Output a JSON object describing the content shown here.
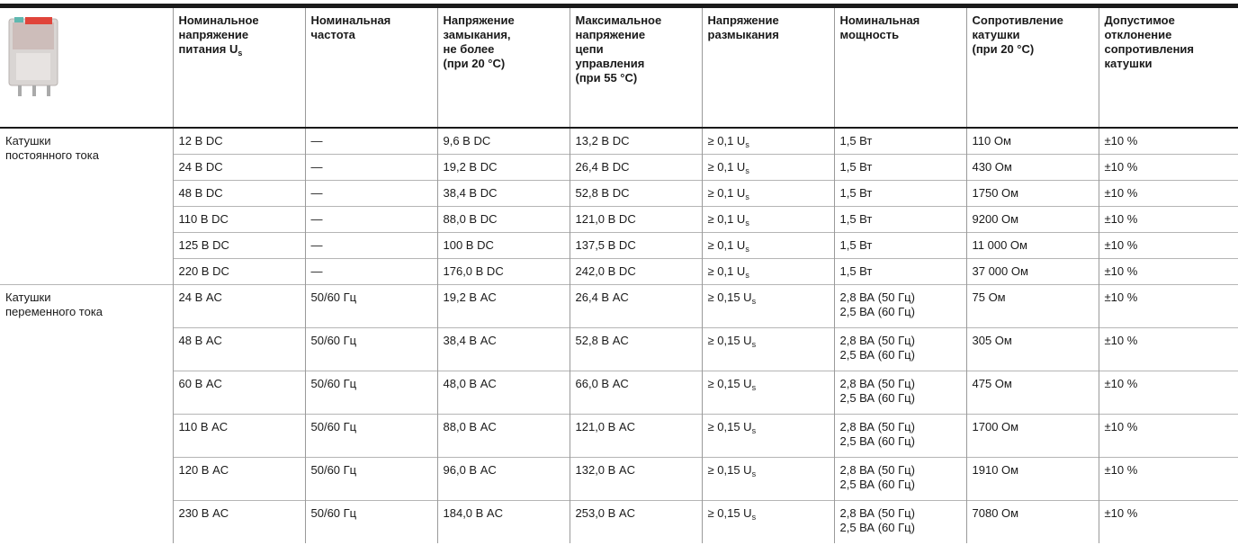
{
  "table": {
    "header": [
      {
        "lines": [
          "Номинальное",
          "напряжение",
          "питания U"
        ],
        "sub": "s"
      },
      {
        "lines": [
          "Номинальная",
          "частота"
        ]
      },
      {
        "lines": [
          "Напряжение",
          "замыкания,",
          "не более",
          "(при 20 °C)"
        ]
      },
      {
        "lines": [
          "Максимальное",
          "напряжение",
          "цепи",
          "управления",
          "(при 55 °C)"
        ]
      },
      {
        "lines": [
          "Напряжение",
          "размыкания"
        ]
      },
      {
        "lines": [
          "Номинальная",
          "мощность"
        ]
      },
      {
        "lines": [
          "Сопротивление",
          "катушки",
          "(при 20 °C)"
        ]
      },
      {
        "lines": [
          "Допустимое",
          "отклонение",
          "сопротивления",
          "катушки"
        ]
      }
    ],
    "groups": [
      {
        "label": [
          "Катушки",
          "постоянного тока"
        ],
        "rows": [
          [
            "12 В DC",
            "—",
            "9,6 В DC",
            "13,2 В DC",
            {
              "text": "≥ 0,1 U",
              "sub": "s"
            },
            "1,5 Вт",
            "110 Ом",
            "±10 %"
          ],
          [
            "24 В DC",
            "—",
            "19,2 В DC",
            "26,4 В DC",
            {
              "text": "≥ 0,1 U",
              "sub": "s"
            },
            "1,5 Вт",
            "430 Ом",
            "±10 %"
          ],
          [
            "48 В DC",
            "—",
            "38,4 В DC",
            "52,8 В DC",
            {
              "text": "≥ 0,1 U",
              "sub": "s"
            },
            "1,5 Вт",
            "1750 Ом",
            "±10 %"
          ],
          [
            "110 В DC",
            "—",
            "88,0 В DC",
            "121,0 В DC",
            {
              "text": "≥ 0,1 U",
              "sub": "s"
            },
            "1,5 Вт",
            "9200 Ом",
            "±10 %"
          ],
          [
            "125 В DC",
            "—",
            "100 В DC",
            "137,5 В DC",
            {
              "text": "≥ 0,1 U",
              "sub": "s"
            },
            "1,5 Вт",
            "11 000 Ом",
            "±10 %"
          ],
          [
            "220 В DC",
            "—",
            "176,0 В DC",
            "242,0 В DC",
            {
              "text": "≥ 0,1 U",
              "sub": "s"
            },
            "1,5 Вт",
            "37 000 Ом",
            "±10 %"
          ]
        ]
      },
      {
        "label": [
          "Катушки",
          "переменного тока"
        ],
        "rows": [
          [
            "24 В AC",
            "50/60 Гц",
            "19,2 В AC",
            "26,4 В AC",
            {
              "text": "≥ 0,15 U",
              "sub": "s"
            },
            [
              "2,8 ВА (50 Гц)",
              "2,5 ВА (60 Гц)"
            ],
            "75 Ом",
            "±10 %"
          ],
          [
            "48 В AC",
            "50/60 Гц",
            "38,4 В AC",
            "52,8 В AC",
            {
              "text": "≥ 0,15 U",
              "sub": "s"
            },
            [
              "2,8 ВА (50 Гц)",
              "2,5 ВА (60 Гц)"
            ],
            "305 Ом",
            "±10 %"
          ],
          [
            "60 В AC",
            "50/60 Гц",
            "48,0 В AC",
            "66,0 В AC",
            {
              "text": "≥ 0,15 U",
              "sub": "s"
            },
            [
              "2,8 ВА (50 Гц)",
              "2,5 ВА (60 Гц)"
            ],
            "475 Ом",
            "±10 %"
          ],
          [
            "110 В AC",
            "50/60 Гц",
            "88,0 В AC",
            "121,0 В AC",
            {
              "text": "≥ 0,15 U",
              "sub": "s"
            },
            [
              "2,8 ВА (50 Гц)",
              "2,5 ВА (60 Гц)"
            ],
            "1700 Ом",
            "±10 %"
          ],
          [
            "120 В AC",
            "50/60 Гц",
            "96,0 В AC",
            "132,0 В AC",
            {
              "text": "≥ 0,15 U",
              "sub": "s"
            },
            [
              "2,8 ВА (50 Гц)",
              "2,5 ВА (60 Гц)"
            ],
            "1910 Ом",
            "±10 %"
          ],
          [
            "230 В AC",
            "50/60 Гц",
            "184,0 В AC",
            "253,0 В AC",
            {
              "text": "≥ 0,15 U",
              "sub": "s"
            },
            [
              "2,8 ВА (50 Гц)",
              "2,5 ВА (60 Гц)"
            ],
            "7080 Ом",
            "±10 %"
          ]
        ]
      }
    ]
  }
}
